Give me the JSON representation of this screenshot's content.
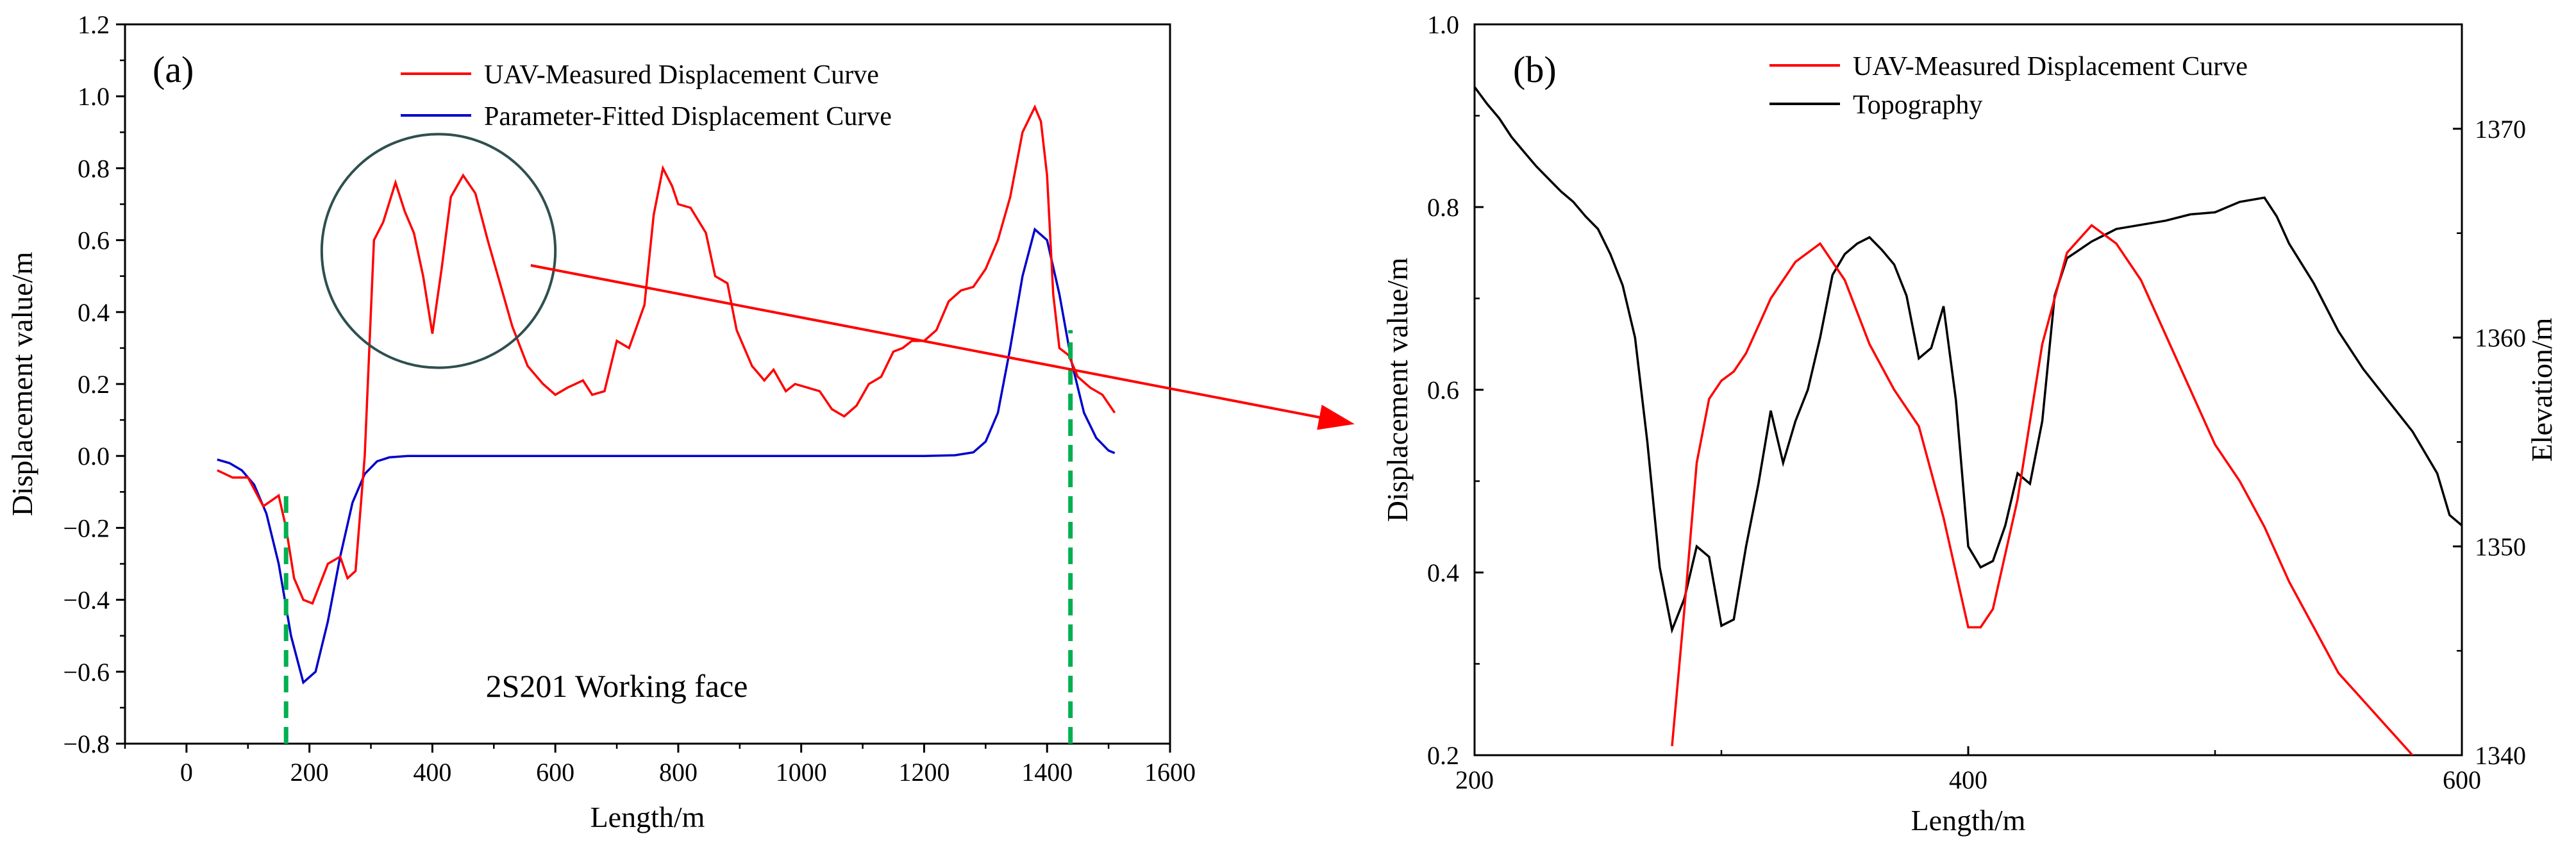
{
  "chart_data": [
    {
      "type": "line",
      "panel_label": "(a)",
      "xlabel": "Length/m",
      "ylabel": "Displacement value/m",
      "xlim": [
        -100,
        1600
      ],
      "ylim": [
        -0.8,
        1.2
      ],
      "xticks": [
        0,
        200,
        400,
        600,
        800,
        1000,
        1200,
        1400,
        1600
      ],
      "yticks": [
        -0.8,
        -0.6,
        -0.4,
        -0.2,
        0.0,
        0.2,
        0.4,
        0.6,
        0.8,
        1.0,
        1.2
      ],
      "xtick_labels": [
        "0",
        "200",
        "400",
        "600",
        "800",
        "1000",
        "1200",
        "1400",
        "1600"
      ],
      "ytick_labels": [
        "−0.8",
        "−0.6",
        "−0.4",
        "−0.2",
        "0.0",
        "0.2",
        "0.4",
        "0.6",
        "0.8",
        "1.0",
        "1.2"
      ],
      "grid": false,
      "legend_position": "top-center",
      "series": [
        {
          "name": "UAV-Measured Displacement Curve",
          "color": "#ff0000",
          "x": [
            50,
            75,
            100,
            125,
            150,
            162,
            175,
            190,
            205,
            230,
            250,
            262,
            275,
            290,
            305,
            320,
            340,
            355,
            370,
            385,
            400,
            415,
            430,
            450,
            470,
            490,
            510,
            530,
            555,
            580,
            600,
            620,
            645,
            660,
            680,
            700,
            720,
            745,
            760,
            775,
            790,
            800,
            820,
            845,
            860,
            880,
            895,
            920,
            940,
            955,
            975,
            990,
            1010,
            1030,
            1050,
            1070,
            1090,
            1110,
            1130,
            1150,
            1165,
            1180,
            1200,
            1220,
            1240,
            1260,
            1280,
            1300,
            1320,
            1340,
            1360,
            1380,
            1390,
            1400,
            1410,
            1420,
            1435,
            1450,
            1470,
            1490,
            1510
          ],
          "y": [
            -0.04,
            -0.06,
            -0.06,
            -0.14,
            -0.11,
            -0.2,
            -0.34,
            -0.4,
            -0.41,
            -0.3,
            -0.28,
            -0.34,
            -0.32,
            0.0,
            0.6,
            0.65,
            0.76,
            0.68,
            0.62,
            0.5,
            0.34,
            0.52,
            0.72,
            0.78,
            0.73,
            0.6,
            0.48,
            0.36,
            0.25,
            0.2,
            0.17,
            0.19,
            0.21,
            0.17,
            0.18,
            0.32,
            0.3,
            0.42,
            0.67,
            0.8,
            0.75,
            0.7,
            0.69,
            0.62,
            0.5,
            0.48,
            0.35,
            0.25,
            0.21,
            0.24,
            0.18,
            0.2,
            0.19,
            0.18,
            0.13,
            0.11,
            0.14,
            0.2,
            0.22,
            0.29,
            0.3,
            0.32,
            0.32,
            0.35,
            0.43,
            0.46,
            0.47,
            0.52,
            0.6,
            0.72,
            0.9,
            0.97,
            0.93,
            0.78,
            0.45,
            0.3,
            0.28,
            0.22,
            0.19,
            0.17,
            0.12
          ]
        },
        {
          "name": "Parameter-Fitted Displacement Curve",
          "color": "#0000cc",
          "x": [
            50,
            70,
            90,
            110,
            130,
            150,
            170,
            190,
            210,
            230,
            250,
            270,
            290,
            310,
            330,
            360,
            400,
            500,
            700,
            900,
            1100,
            1200,
            1250,
            1280,
            1300,
            1320,
            1340,
            1360,
            1380,
            1400,
            1420,
            1440,
            1460,
            1480,
            1500,
            1510
          ],
          "y": [
            -0.01,
            -0.02,
            -0.04,
            -0.08,
            -0.16,
            -0.3,
            -0.5,
            -0.63,
            -0.6,
            -0.46,
            -0.28,
            -0.13,
            -0.05,
            -0.015,
            -0.004,
            0.0,
            0.0,
            0.0,
            0.0,
            0.0,
            0.0,
            0.0,
            0.002,
            0.01,
            0.04,
            0.12,
            0.3,
            0.5,
            0.63,
            0.6,
            0.45,
            0.26,
            0.12,
            0.05,
            0.015,
            0.008
          ]
        }
      ],
      "markers": {
        "color": "#00b050",
        "vlines": [
          {
            "x": 162,
            "y_from": -0.8,
            "y_to": -0.1
          },
          {
            "x": 1438,
            "y_from": -0.8,
            "y_to": 0.35
          }
        ]
      },
      "annotations": {
        "circle": {
          "cx": 410,
          "cy": 0.57,
          "r_data_x": 190
        },
        "arrow": {
          "from": [
            560,
            0.53
          ],
          "color": "#ff0000"
        },
        "text": "2S201 Working face",
        "text_pos": [
          700,
          -0.67
        ]
      }
    },
    {
      "type": "line",
      "panel_label": "(b)",
      "xlabel": "Length/m",
      "ylabel": "Displacement value/m",
      "y2label": "Elevation/m",
      "xlim": [
        200,
        600
      ],
      "ylim": [
        0.2,
        1.0
      ],
      "y2lim": [
        1340,
        1375
      ],
      "xticks": [
        200,
        400,
        600
      ],
      "yticks": [
        0.2,
        0.4,
        0.6,
        0.8,
        1.0
      ],
      "y2ticks": [
        1340,
        1350,
        1360,
        1370
      ],
      "xtick_labels": [
        "200",
        "400",
        "600"
      ],
      "ytick_labels": [
        "0.2",
        "0.4",
        "0.6",
        "0.8",
        "1.0"
      ],
      "y2tick_labels": [
        "1340",
        "1350",
        "1360",
        "1370"
      ],
      "grid": false,
      "legend_position": "top-center",
      "series": [
        {
          "name": "UAV-Measured Displacement Curve",
          "color": "#ff0000",
          "axis": "left",
          "x": [
            280,
            285,
            290,
            295,
            300,
            305,
            310,
            315,
            320,
            330,
            340,
            350,
            360,
            370,
            380,
            390,
            400,
            405,
            410,
            420,
            430,
            440,
            450,
            460,
            470,
            480,
            490,
            500,
            510,
            520,
            530,
            540,
            550,
            560,
            570,
            580
          ],
          "y": [
            0.21,
            0.36,
            0.52,
            0.59,
            0.61,
            0.62,
            0.64,
            0.67,
            0.7,
            0.74,
            0.76,
            0.72,
            0.65,
            0.6,
            0.56,
            0.46,
            0.34,
            0.34,
            0.36,
            0.48,
            0.65,
            0.75,
            0.78,
            0.76,
            0.72,
            0.66,
            0.6,
            0.54,
            0.5,
            0.45,
            0.39,
            0.34,
            0.29,
            0.26,
            0.23,
            0.2
          ]
        },
        {
          "name": "Topography",
          "color": "#000000",
          "axis": "right",
          "x": [
            200,
            205,
            210,
            215,
            220,
            225,
            230,
            235,
            240,
            245,
            250,
            255,
            260,
            265,
            270,
            275,
            280,
            285,
            290,
            295,
            300,
            305,
            310,
            315,
            320,
            325,
            330,
            335,
            340,
            345,
            350,
            355,
            360,
            365,
            370,
            375,
            380,
            385,
            390,
            395,
            400,
            405,
            410,
            415,
            420,
            425,
            430,
            435,
            440,
            445,
            450,
            455,
            460,
            470,
            480,
            490,
            500,
            510,
            520,
            525,
            530,
            540,
            550,
            560,
            570,
            580,
            590,
            595,
            600
          ],
          "y": [
            1372,
            1371.2,
            1370.5,
            1369.6,
            1368.9,
            1368.2,
            1367.6,
            1367.0,
            1366.5,
            1365.8,
            1365.2,
            1364.0,
            1362.5,
            1360.0,
            1355.0,
            1349.0,
            1346.0,
            1347.5,
            1350.0,
            1349.5,
            1346.2,
            1346.5,
            1350.0,
            1353.0,
            1356.5,
            1354.0,
            1356.0,
            1357.5,
            1360.0,
            1363.0,
            1364.0,
            1364.5,
            1364.8,
            1364.2,
            1363.5,
            1362.0,
            1359.0,
            1359.5,
            1361.5,
            1357.0,
            1350.0,
            1349.0,
            1349.3,
            1351.0,
            1353.5,
            1353.0,
            1356.0,
            1362.0,
            1363.8,
            1364.2,
            1364.6,
            1364.9,
            1365.2,
            1365.4,
            1365.6,
            1365.9,
            1366.0,
            1366.5,
            1366.7,
            1365.8,
            1364.5,
            1362.6,
            1360.3,
            1358.5,
            1357.0,
            1355.5,
            1353.5,
            1351.5,
            1351.0
          ]
        }
      ]
    }
  ]
}
